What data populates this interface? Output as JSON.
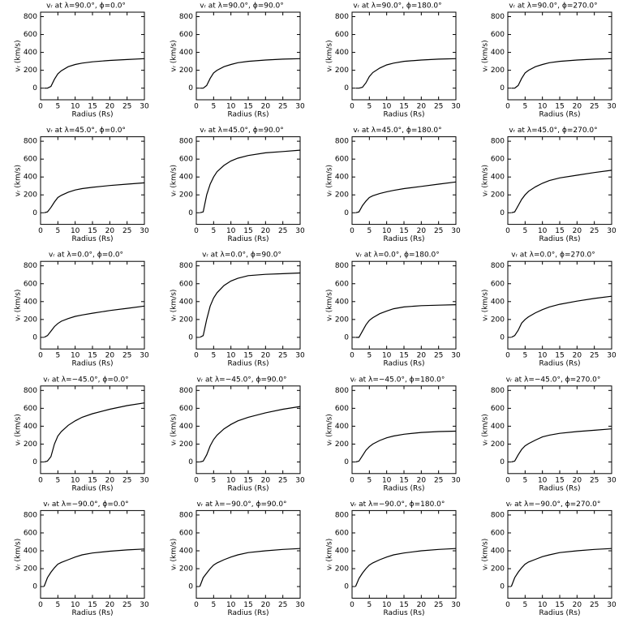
{
  "chart_data": [
    {
      "type": "line",
      "title": "vᵣ at λ=90.0°, ϕ=0.0°",
      "xlabel": "Radius (Rs)",
      "ylabel": "vᵣ (km/s)",
      "color": "#000000",
      "x": [
        1,
        2,
        3,
        4,
        5,
        6,
        8,
        10,
        12,
        15,
        20,
        25,
        30
      ],
      "values": [
        0,
        0,
        20,
        100,
        160,
        195,
        240,
        265,
        280,
        295,
        310,
        320,
        330
      ],
      "xlim": [
        0,
        30
      ],
      "ylim": [
        -130,
        850
      ],
      "xticks": [
        0,
        5,
        10,
        15,
        20,
        25,
        30
      ],
      "yticks": [
        0,
        200,
        400,
        600,
        800
      ]
    },
    {
      "type": "line",
      "title": "vᵣ at λ=90.0°, ϕ=90.0°",
      "xlabel": "Radius (Rs)",
      "ylabel": "vᵣ (km/s)",
      "color": "#000000",
      "x": [
        1,
        2,
        3,
        4,
        5,
        6,
        8,
        10,
        12,
        15,
        20,
        25,
        30
      ],
      "values": [
        0,
        0,
        30,
        110,
        170,
        200,
        240,
        265,
        285,
        300,
        315,
        325,
        330
      ],
      "xlim": [
        0,
        30
      ],
      "ylim": [
        -130,
        850
      ],
      "xticks": [
        0,
        5,
        10,
        15,
        20,
        25,
        30
      ],
      "yticks": [
        0,
        200,
        400,
        600,
        800
      ]
    },
    {
      "type": "line",
      "title": "vᵣ at λ=90.0°, ϕ=180.0°",
      "xlabel": "Radius (Rs)",
      "ylabel": "vᵣ (km/s)",
      "color": "#000000",
      "x": [
        1,
        2,
        3,
        4,
        5,
        6,
        8,
        10,
        12,
        15,
        20,
        25,
        30
      ],
      "values": [
        0,
        0,
        10,
        60,
        130,
        175,
        225,
        260,
        280,
        300,
        315,
        325,
        330
      ],
      "xlim": [
        0,
        30
      ],
      "ylim": [
        -130,
        850
      ],
      "xticks": [
        0,
        5,
        10,
        15,
        20,
        25,
        30
      ],
      "yticks": [
        0,
        200,
        400,
        600,
        800
      ]
    },
    {
      "type": "line",
      "title": "vᵣ at λ=90.0°, ϕ=270.0°",
      "xlabel": "Radius (Rs)",
      "ylabel": "vᵣ (km/s)",
      "color": "#000000",
      "x": [
        1,
        2,
        3,
        4,
        5,
        6,
        8,
        10,
        12,
        15,
        20,
        25,
        30
      ],
      "values": [
        0,
        0,
        30,
        110,
        170,
        200,
        240,
        265,
        285,
        300,
        315,
        325,
        330
      ],
      "xlim": [
        0,
        30
      ],
      "ylim": [
        -130,
        850
      ],
      "xticks": [
        0,
        5,
        10,
        15,
        20,
        25,
        30
      ],
      "yticks": [
        0,
        200,
        400,
        600,
        800
      ]
    },
    {
      "type": "line",
      "title": "vᵣ at λ=45.0°, ϕ=0.0°",
      "xlabel": "Radius (Rs)",
      "ylabel": "vᵣ (km/s)",
      "color": "#000000",
      "x": [
        1,
        2,
        3,
        4,
        5,
        6,
        8,
        10,
        12,
        15,
        20,
        25,
        30
      ],
      "values": [
        0,
        10,
        60,
        120,
        170,
        195,
        230,
        255,
        270,
        285,
        305,
        320,
        335
      ],
      "xlim": [
        0,
        30
      ],
      "ylim": [
        -130,
        850
      ],
      "xticks": [
        0,
        5,
        10,
        15,
        20,
        25,
        30
      ],
      "yticks": [
        0,
        200,
        400,
        600,
        800
      ]
    },
    {
      "type": "line",
      "title": "vᵣ at λ=45.0°, ϕ=90.0°",
      "xlabel": "Radius (Rs)",
      "ylabel": "vᵣ (km/s)",
      "color": "#000000",
      "x": [
        1,
        2,
        3,
        4,
        5,
        6,
        8,
        10,
        12,
        15,
        20,
        25,
        30
      ],
      "values": [
        0,
        10,
        200,
        320,
        400,
        460,
        530,
        580,
        610,
        640,
        670,
        685,
        700
      ],
      "xlim": [
        0,
        30
      ],
      "ylim": [
        -130,
        850
      ],
      "xticks": [
        0,
        5,
        10,
        15,
        20,
        25,
        30
      ],
      "yticks": [
        0,
        200,
        400,
        600,
        800
      ]
    },
    {
      "type": "line",
      "title": "vᵣ at λ=45.0°, ϕ=180.0°",
      "xlabel": "Radius (Rs)",
      "ylabel": "vᵣ (km/s)",
      "color": "#000000",
      "x": [
        1,
        2,
        3,
        4,
        5,
        6,
        8,
        10,
        12,
        15,
        20,
        25,
        30
      ],
      "values": [
        0,
        10,
        80,
        130,
        170,
        190,
        215,
        235,
        250,
        270,
        295,
        320,
        345
      ],
      "xlim": [
        0,
        30
      ],
      "ylim": [
        -130,
        850
      ],
      "xticks": [
        0,
        5,
        10,
        15,
        20,
        25,
        30
      ],
      "yticks": [
        0,
        200,
        400,
        600,
        800
      ]
    },
    {
      "type": "line",
      "title": "vᵣ at λ=45.0°, ϕ=270.0°",
      "xlabel": "Radius (Rs)",
      "ylabel": "vᵣ (km/s)",
      "color": "#000000",
      "x": [
        1,
        2,
        3,
        4,
        5,
        6,
        8,
        10,
        12,
        15,
        20,
        25,
        30
      ],
      "values": [
        0,
        10,
        80,
        150,
        200,
        240,
        290,
        330,
        360,
        390,
        420,
        450,
        475
      ],
      "xlim": [
        0,
        30
      ],
      "ylim": [
        -130,
        850
      ],
      "xticks": [
        0,
        5,
        10,
        15,
        20,
        25,
        30
      ],
      "yticks": [
        0,
        200,
        400,
        600,
        800
      ]
    },
    {
      "type": "line",
      "title": "vᵣ at λ=0.0°, ϕ=0.0°",
      "xlabel": "Radius (Rs)",
      "ylabel": "vᵣ (km/s)",
      "color": "#000000",
      "x": [
        1,
        2,
        3,
        4,
        5,
        6,
        8,
        10,
        12,
        15,
        20,
        25,
        30
      ],
      "values": [
        0,
        20,
        70,
        120,
        155,
        180,
        210,
        235,
        250,
        270,
        300,
        325,
        350
      ],
      "xlim": [
        0,
        30
      ],
      "ylim": [
        -130,
        850
      ],
      "xticks": [
        0,
        5,
        10,
        15,
        20,
        25,
        30
      ],
      "yticks": [
        0,
        200,
        400,
        600,
        800
      ]
    },
    {
      "type": "line",
      "title": "vᵣ at λ=0.0°, ϕ=90.0°",
      "xlabel": "Radius (Rs)",
      "ylabel": "vᵣ (km/s)",
      "color": "#000000",
      "x": [
        1,
        2,
        3,
        4,
        5,
        6,
        8,
        10,
        12,
        15,
        20,
        25,
        30
      ],
      "values": [
        0,
        20,
        200,
        350,
        440,
        500,
        580,
        630,
        660,
        690,
        705,
        712,
        720
      ],
      "xlim": [
        0,
        30
      ],
      "ylim": [
        -130,
        850
      ],
      "xticks": [
        0,
        5,
        10,
        15,
        20,
        25,
        30
      ],
      "yticks": [
        0,
        200,
        400,
        600,
        800
      ]
    },
    {
      "type": "line",
      "title": "vᵣ at λ=0.0°, ϕ=180.0°",
      "xlabel": "Radius (Rs)",
      "ylabel": "vᵣ (km/s)",
      "color": "#000000",
      "x": [
        1,
        2,
        3,
        4,
        5,
        6,
        8,
        10,
        12,
        15,
        20,
        25,
        30
      ],
      "values": [
        0,
        0,
        70,
        140,
        190,
        220,
        265,
        295,
        320,
        340,
        355,
        360,
        365
      ],
      "xlim": [
        0,
        30
      ],
      "ylim": [
        -130,
        850
      ],
      "xticks": [
        0,
        5,
        10,
        15,
        20,
        25,
        30
      ],
      "yticks": [
        0,
        200,
        400,
        600,
        800
      ]
    },
    {
      "type": "line",
      "title": "vᵣ at λ=0.0°, ϕ=270.0°",
      "xlabel": "Radius (Rs)",
      "ylabel": "vᵣ (km/s)",
      "color": "#000000",
      "x": [
        1,
        2,
        3,
        4,
        5,
        6,
        8,
        10,
        12,
        15,
        20,
        25,
        30
      ],
      "values": [
        0,
        20,
        80,
        160,
        200,
        230,
        275,
        310,
        340,
        370,
        405,
        435,
        460
      ],
      "xlim": [
        0,
        30
      ],
      "ylim": [
        -130,
        850
      ],
      "xticks": [
        0,
        5,
        10,
        15,
        20,
        25,
        30
      ],
      "yticks": [
        0,
        200,
        400,
        600,
        800
      ]
    },
    {
      "type": "line",
      "title": "vᵣ at λ=−45.0°, ϕ=0.0°",
      "xlabel": "Radius (Rs)",
      "ylabel": "vᵣ (km/s)",
      "color": "#000000",
      "x": [
        1,
        2,
        3,
        4,
        5,
        6,
        8,
        10,
        12,
        15,
        20,
        25,
        30
      ],
      "values": [
        0,
        10,
        60,
        200,
        290,
        340,
        410,
        460,
        500,
        540,
        590,
        630,
        660
      ],
      "xlim": [
        0,
        30
      ],
      "ylim": [
        -130,
        850
      ],
      "xticks": [
        0,
        5,
        10,
        15,
        20,
        25,
        30
      ],
      "yticks": [
        0,
        200,
        400,
        600,
        800
      ]
    },
    {
      "type": "line",
      "title": "vᵣ at λ=−45.0°, ϕ=90.0°",
      "xlabel": "Radius (Rs)",
      "ylabel": "vᵣ (km/s)",
      "color": "#000000",
      "x": [
        1,
        2,
        3,
        4,
        5,
        6,
        8,
        10,
        12,
        15,
        20,
        25,
        30
      ],
      "values": [
        0,
        10,
        80,
        180,
        250,
        300,
        370,
        420,
        460,
        500,
        550,
        590,
        620
      ],
      "xlim": [
        0,
        30
      ],
      "ylim": [
        -130,
        850
      ],
      "xticks": [
        0,
        5,
        10,
        15,
        20,
        25,
        30
      ],
      "yticks": [
        0,
        200,
        400,
        600,
        800
      ]
    },
    {
      "type": "line",
      "title": "vᵣ at λ=−45.0°, ϕ=180.0°",
      "xlabel": "Radius (Rs)",
      "ylabel": "vᵣ (km/s)",
      "color": "#000000",
      "x": [
        1,
        2,
        3,
        4,
        5,
        6,
        8,
        10,
        12,
        15,
        20,
        25,
        30
      ],
      "values": [
        0,
        10,
        70,
        130,
        170,
        200,
        240,
        270,
        290,
        310,
        330,
        340,
        345
      ],
      "xlim": [
        0,
        30
      ],
      "ylim": [
        -130,
        850
      ],
      "xticks": [
        0,
        5,
        10,
        15,
        20,
        25,
        30
      ],
      "yticks": [
        0,
        200,
        400,
        600,
        800
      ]
    },
    {
      "type": "line",
      "title": "vᵣ at λ=−45.0°, ϕ=270.0°",
      "xlabel": "Radius (Rs)",
      "ylabel": "vᵣ (km/s)",
      "color": "#000000",
      "x": [
        1,
        2,
        3,
        4,
        5,
        6,
        8,
        10,
        12,
        15,
        20,
        25,
        30
      ],
      "values": [
        0,
        10,
        80,
        140,
        180,
        205,
        245,
        280,
        300,
        320,
        340,
        355,
        370
      ],
      "xlim": [
        0,
        30
      ],
      "ylim": [
        -130,
        850
      ],
      "xticks": [
        0,
        5,
        10,
        15,
        20,
        25,
        30
      ],
      "yticks": [
        0,
        200,
        400,
        600,
        800
      ]
    },
    {
      "type": "line",
      "title": "vᵣ at λ=−90.0°, ϕ=0.0°",
      "xlabel": "Radius (Rs)",
      "ylabel": "vᵣ (km/s)",
      "color": "#000000",
      "x": [
        1,
        2,
        3,
        4,
        5,
        6,
        8,
        10,
        12,
        15,
        20,
        25,
        30
      ],
      "values": [
        0,
        100,
        160,
        210,
        250,
        270,
        300,
        330,
        355,
        375,
        395,
        410,
        420
      ],
      "xlim": [
        0,
        30
      ],
      "ylim": [
        -130,
        850
      ],
      "xticks": [
        0,
        5,
        10,
        15,
        20,
        25,
        30
      ],
      "yticks": [
        0,
        200,
        400,
        600,
        800
      ]
    },
    {
      "type": "line",
      "title": "vᵣ at λ=−90.0°, ϕ=90.0°",
      "xlabel": "Radius (Rs)",
      "ylabel": "vᵣ (km/s)",
      "color": "#000000",
      "x": [
        1,
        2,
        3,
        4,
        5,
        6,
        8,
        10,
        12,
        15,
        20,
        25,
        30
      ],
      "values": [
        0,
        100,
        150,
        200,
        240,
        265,
        300,
        330,
        355,
        380,
        400,
        415,
        425
      ],
      "xlim": [
        0,
        30
      ],
      "ylim": [
        -130,
        850
      ],
      "xticks": [
        0,
        5,
        10,
        15,
        20,
        25,
        30
      ],
      "yticks": [
        0,
        200,
        400,
        600,
        800
      ]
    },
    {
      "type": "line",
      "title": "vᵣ at λ=−90.0°, ϕ=180.0°",
      "xlabel": "Radius (Rs)",
      "ylabel": "vᵣ (km/s)",
      "color": "#000000",
      "x": [
        1,
        2,
        3,
        4,
        5,
        6,
        8,
        10,
        12,
        15,
        20,
        25,
        30
      ],
      "values": [
        0,
        90,
        150,
        200,
        240,
        265,
        300,
        330,
        355,
        375,
        400,
        415,
        425
      ],
      "xlim": [
        0,
        30
      ],
      "ylim": [
        -130,
        850
      ],
      "xticks": [
        0,
        5,
        10,
        15,
        20,
        25,
        30
      ],
      "yticks": [
        0,
        200,
        400,
        600,
        800
      ]
    },
    {
      "type": "line",
      "title": "vᵣ at λ=−90.0°, ϕ=270.0°",
      "xlabel": "Radius (Rs)",
      "ylabel": "vᵣ (km/s)",
      "color": "#000000",
      "x": [
        1,
        2,
        3,
        4,
        5,
        6,
        8,
        10,
        12,
        15,
        20,
        25,
        30
      ],
      "values": [
        0,
        100,
        160,
        210,
        250,
        275,
        305,
        335,
        355,
        380,
        400,
        415,
        425
      ],
      "xlim": [
        0,
        30
      ],
      "ylim": [
        -130,
        850
      ],
      "xticks": [
        0,
        5,
        10,
        15,
        20,
        25,
        30
      ],
      "yticks": [
        0,
        200,
        400,
        600,
        800
      ]
    }
  ]
}
